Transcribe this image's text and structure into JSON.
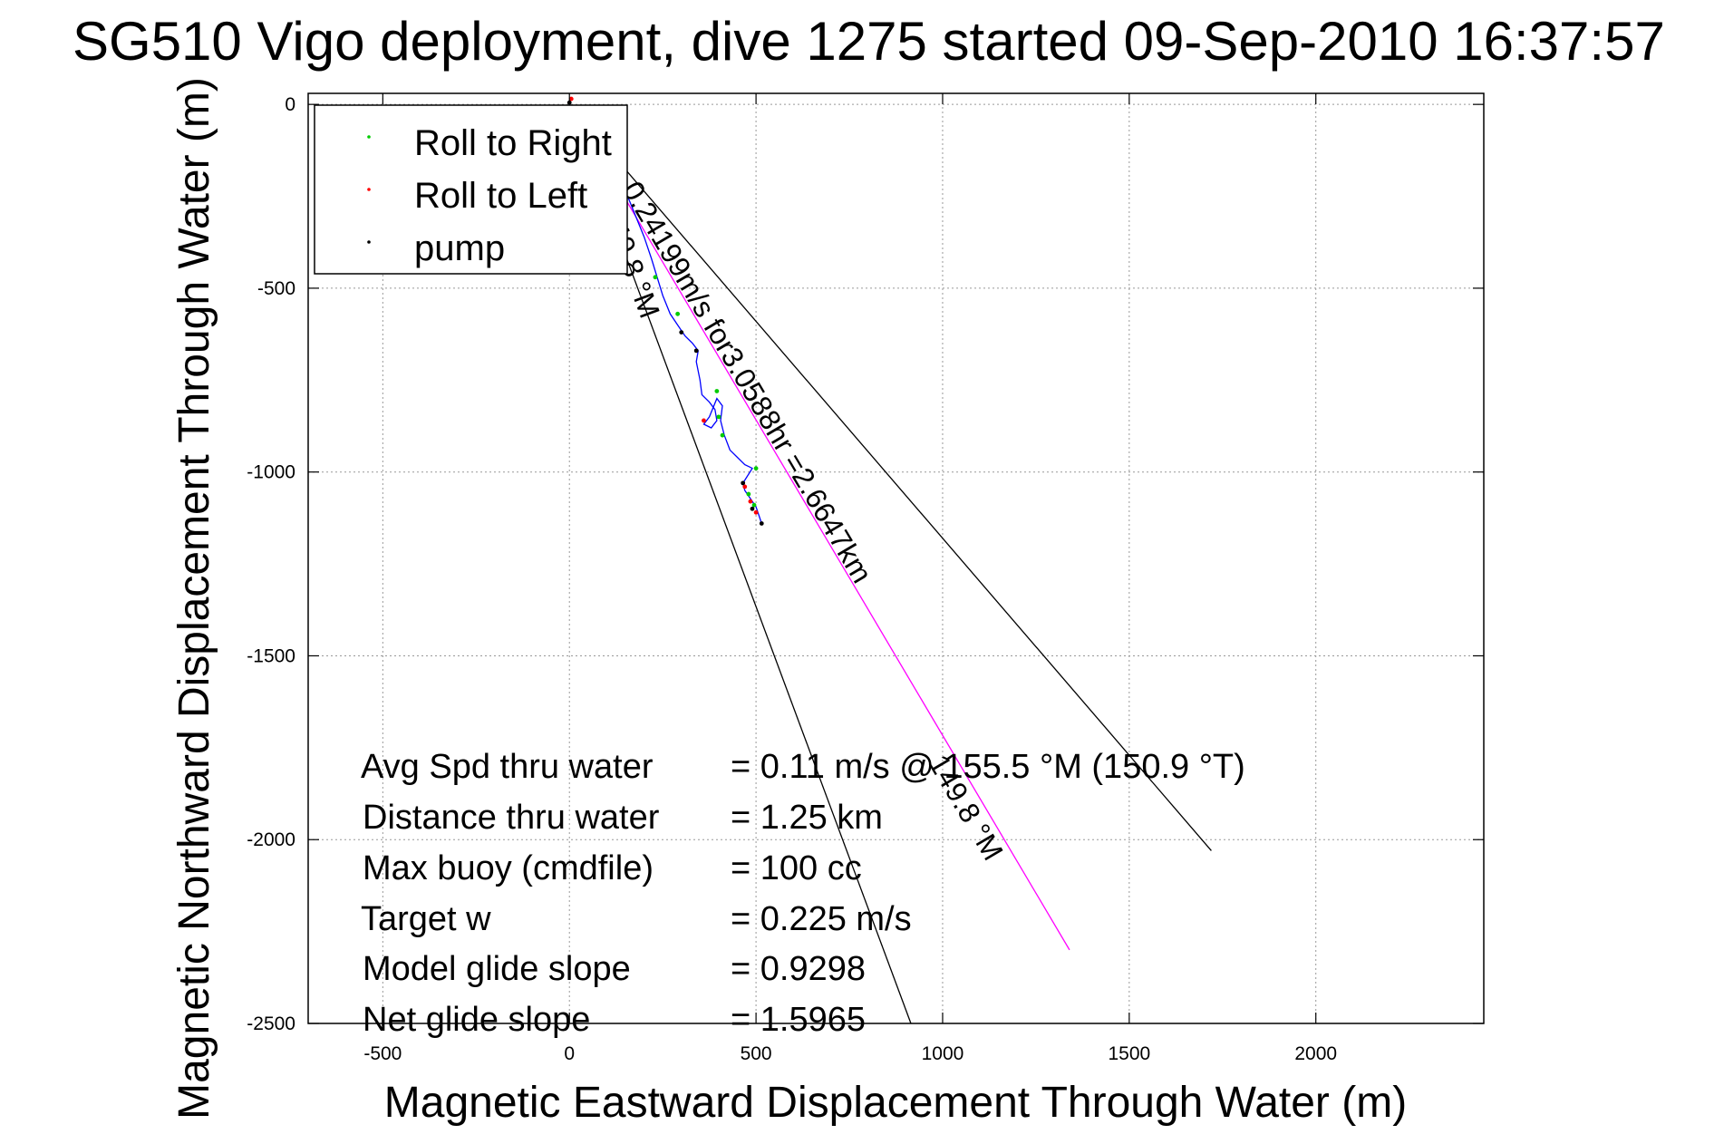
{
  "chart_data": {
    "type": "line",
    "title": "SG510 Vigo deployment, dive 1275 started 09-Sep-2010 16:37:57",
    "xlabel": "Magnetic Eastward Displacement Through Water (m)",
    "ylabel": "Magnetic Northward Displacement Through Water (m)",
    "xlim": [
      -700,
      2450
    ],
    "ylim": [
      -2500,
      30
    ],
    "xticks": [
      -500,
      0,
      500,
      1000,
      1500,
      2000
    ],
    "xtick_labels": [
      "-500",
      "0",
      "500",
      "1000",
      "1500",
      "2000"
    ],
    "yticks": [
      0,
      -500,
      -1000,
      -1500,
      -2000,
      -2500
    ],
    "ytick_labels": [
      "0",
      "-500",
      "-1000",
      "-1500",
      "-2000",
      "-2500"
    ],
    "grid": true,
    "legend": {
      "placement": "top-left",
      "entries": [
        {
          "label": "Roll to Right",
          "color": "#00cc00"
        },
        {
          "label": "Roll to Left",
          "color": "#ff0000"
        },
        {
          "label": "pump",
          "color": "#000000"
        }
      ]
    },
    "track": {
      "color": "#0000ff",
      "x": [
        0,
        10,
        50,
        100,
        130,
        160,
        180,
        200,
        220,
        235,
        250,
        270,
        290,
        310,
        330,
        345,
        340,
        350,
        355,
        375,
        390,
        395,
        380,
        360,
        375,
        395,
        410,
        405,
        415,
        430,
        450,
        470,
        480,
        490,
        465,
        470,
        480,
        490,
        500,
        505,
        515
      ],
      "y": [
        0,
        -20,
        -80,
        -150,
        -200,
        -260,
        -310,
        -360,
        -420,
        -470,
        -520,
        -570,
        -600,
        -630,
        -650,
        -670,
        -700,
        -750,
        -790,
        -810,
        -830,
        -860,
        -880,
        -870,
        -850,
        -800,
        -820,
        -860,
        -900,
        -940,
        -960,
        -980,
        -985,
        -990,
        -1030,
        -1050,
        -1065,
        -1080,
        -1095,
        -1110,
        -1140
      ]
    },
    "roll_right_points": [
      {
        "x": 0,
        "y": -10
      },
      {
        "x": 150,
        "y": -230
      },
      {
        "x": 230,
        "y": -470
      },
      {
        "x": 290,
        "y": -570
      },
      {
        "x": 395,
        "y": -780
      },
      {
        "x": 400,
        "y": -850
      },
      {
        "x": 410,
        "y": -900
      },
      {
        "x": 500,
        "y": -990
      },
      {
        "x": 480,
        "y": -1060
      },
      {
        "x": 495,
        "y": -1090
      }
    ],
    "roll_left_points": [
      {
        "x": 5,
        "y": 15
      },
      {
        "x": 360,
        "y": -860
      },
      {
        "x": 470,
        "y": -1040
      },
      {
        "x": 485,
        "y": -1080
      },
      {
        "x": 500,
        "y": -1110
      }
    ],
    "pump_points": [
      {
        "x": 0,
        "y": 5
      },
      {
        "x": 100,
        "y": -150
      },
      {
        "x": 300,
        "y": -620
      },
      {
        "x": 340,
        "y": -670
      },
      {
        "x": 465,
        "y": -1030
      },
      {
        "x": 490,
        "y": -1100
      },
      {
        "x": 515,
        "y": -1140
      }
    ],
    "current_line": {
      "color": "#ff00ff",
      "x": [
        0,
        1340
      ],
      "y": [
        0,
        -2300
      ],
      "label": "0.24199m/s for3.0588hr =2.6647km"
    },
    "boundary_lines": [
      {
        "color": "#000000",
        "x": [
          0,
          915
        ],
        "y": [
          0,
          -2500
        ]
      },
      {
        "color": "#000000",
        "x": [
          0,
          1720
        ],
        "y": [
          0,
          -2030
        ]
      }
    ],
    "heading_labels": [
      "149.8 °M",
      "149.8 °M"
    ],
    "stats": [
      {
        "label": "Avg Spd thru water",
        "value": "=  0.11 m/s @ 155.5 °M (150.9 °T)"
      },
      {
        "label": "Distance thru water",
        "value": "=  1.25 km"
      },
      {
        "label": "Max buoy (cmdfile)",
        "value": "= 100 cc"
      },
      {
        "label": "Target w",
        "value": "= 0.225 m/s"
      },
      {
        "label": "Model glide slope",
        "value": "= 0.9298"
      },
      {
        "label": "Net glide slope",
        "value": "= 1.5965"
      }
    ]
  }
}
